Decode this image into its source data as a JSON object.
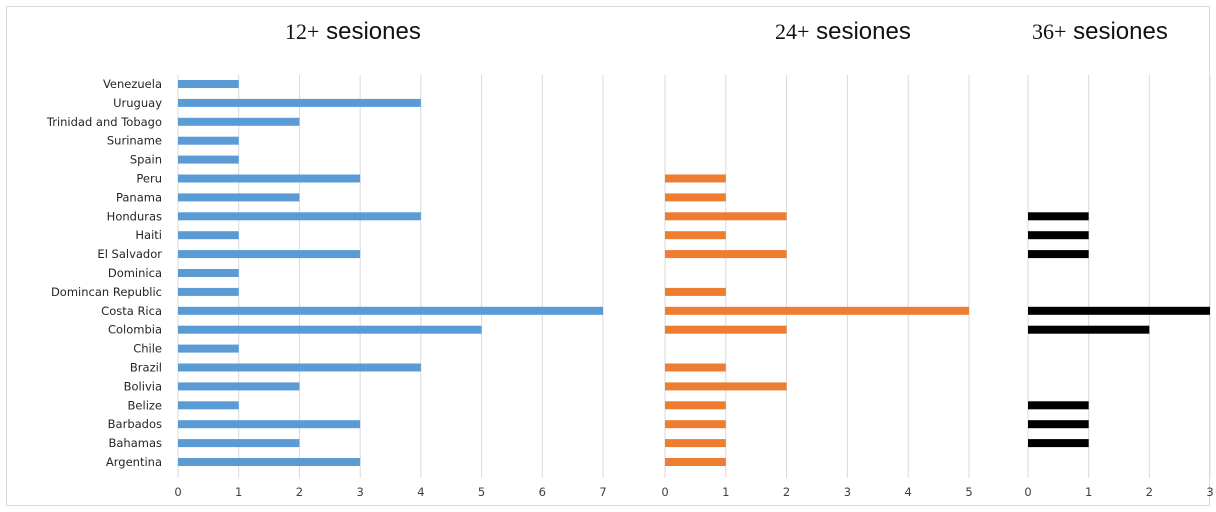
{
  "chart_data": [
    {
      "type": "bar",
      "orientation": "horizontal",
      "title_number": "12+",
      "title_word": "sesiones",
      "color": "#5b9bd5",
      "xlim": [
        0,
        7
      ],
      "ticks": [
        0,
        1,
        2,
        3,
        4,
        5,
        6,
        7
      ],
      "categories": [
        "Venezuela",
        "Uruguay",
        "Trinidad and Tobago",
        "Suriname",
        "Spain",
        "Peru",
        "Panama",
        "Honduras",
        "Haiti",
        "El Salvador",
        "Dominica",
        "Domincan Republic",
        "Costa Rica",
        "Colombia",
        "Chile",
        "Brazil",
        "Bolivia",
        "Belize",
        "Barbados",
        "Bahamas",
        "Argentina"
      ],
      "values": [
        1,
        4,
        2,
        1,
        1,
        3,
        2,
        4,
        1,
        3,
        1,
        1,
        7,
        5,
        1,
        4,
        2,
        1,
        3,
        2,
        3
      ],
      "grid": true
    },
    {
      "type": "bar",
      "orientation": "horizontal",
      "title_number": "24+",
      "title_word": "sesiones",
      "color": "#ed7d31",
      "xlim": [
        0,
        5
      ],
      "ticks": [
        0,
        1,
        2,
        3,
        4,
        5
      ],
      "categories": [
        "Venezuela",
        "Uruguay",
        "Trinidad and Tobago",
        "Suriname",
        "Spain",
        "Peru",
        "Panama",
        "Honduras",
        "Haiti",
        "El Salvador",
        "Dominica",
        "Domincan Republic",
        "Costa Rica",
        "Colombia",
        "Chile",
        "Brazil",
        "Bolivia",
        "Belize",
        "Barbados",
        "Bahamas",
        "Argentina"
      ],
      "values": [
        0,
        0,
        0,
        0,
        0,
        1,
        1,
        2,
        1,
        2,
        0,
        1,
        5,
        2,
        0,
        1,
        2,
        1,
        1,
        1,
        1
      ],
      "grid": true
    },
    {
      "type": "bar",
      "orientation": "horizontal",
      "title_number": "36+",
      "title_word": "sesiones",
      "color": "#000000",
      "xlim": [
        0,
        3
      ],
      "ticks": [
        0,
        1,
        2,
        3
      ],
      "categories": [
        "Venezuela",
        "Uruguay",
        "Trinidad and Tobago",
        "Suriname",
        "Spain",
        "Peru",
        "Panama",
        "Honduras",
        "Haiti",
        "El Salvador",
        "Dominica",
        "Domincan Republic",
        "Costa Rica",
        "Colombia",
        "Chile",
        "Brazil",
        "Bolivia",
        "Belize",
        "Barbados",
        "Bahamas",
        "Argentina"
      ],
      "values": [
        0,
        0,
        0,
        0,
        0,
        0,
        0,
        1,
        1,
        1,
        0,
        0,
        3,
        2,
        0,
        0,
        0,
        1,
        1,
        1,
        0
      ],
      "grid": true
    }
  ]
}
